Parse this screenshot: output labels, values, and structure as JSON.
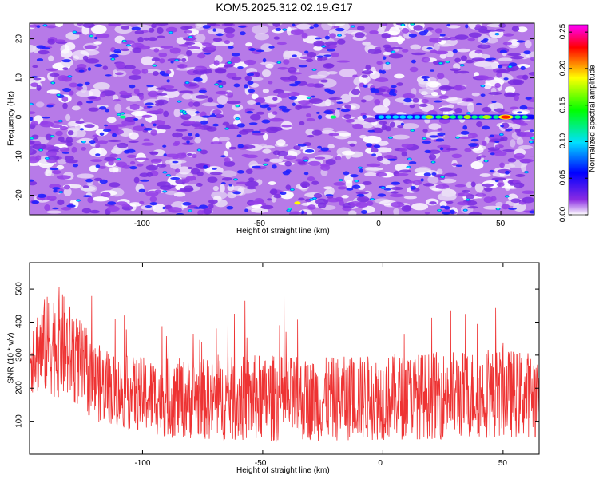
{
  "title": "KOM5.2025.312.02.19.G17",
  "chart_data": [
    {
      "type": "heatmap",
      "title": "KOM5.2025.312.02.19.G17",
      "xlabel": "Height of straight line (km)",
      "ylabel": "Frequency (Hz)",
      "xlim": [
        -147,
        64
      ],
      "ylim": [
        -25,
        24
      ],
      "x_ticks": [
        -100,
        -50,
        0,
        50
      ],
      "y_ticks": [
        -20,
        -10,
        0,
        10,
        20
      ],
      "colorbar": {
        "label": "Normalized spectral amplitude",
        "range": [
          0,
          0.26
        ],
        "ticks": [
          "0.00",
          "0.05",
          "0.10",
          "0.15",
          "0.20",
          "0.25"
        ],
        "colors": [
          "#ffffff",
          "#8a2be2",
          "#0000ff",
          "#00e0ff",
          "#00ff00",
          "#ffff00",
          "#ff0000",
          "#ff00ff"
        ]
      },
      "feature": {
        "description_values": "strong ridge at 0 Hz from about 0 km to 62 km",
        "frequency": 0,
        "x_start": 0,
        "x_end": 62,
        "peak_x": 52,
        "peak_value": 0.26
      }
    },
    {
      "type": "line",
      "xlabel": "Height of straight line (km)",
      "ylabel": "SNR (10 * v/v)",
      "xlim": [
        -147,
        65
      ],
      "ylim": [
        0,
        580
      ],
      "x_ticks": [
        -100,
        -50,
        0,
        50
      ],
      "y_ticks": [
        100,
        200,
        300,
        400,
        500
      ],
      "color": "#ee3333",
      "profile": [
        {
          "x": -147,
          "mean": 300,
          "amp": 120
        },
        {
          "x": -140,
          "mean": 330,
          "amp": 150
        },
        {
          "x": -135,
          "mean": 340,
          "amp": 170
        },
        {
          "x": -128,
          "mean": 290,
          "amp": 140
        },
        {
          "x": -120,
          "mean": 220,
          "amp": 120
        },
        {
          "x": -110,
          "mean": 190,
          "amp": 110
        },
        {
          "x": -90,
          "mean": 170,
          "amp": 120
        },
        {
          "x": -70,
          "mean": 165,
          "amp": 125
        },
        {
          "x": -50,
          "mean": 170,
          "amp": 135
        },
        {
          "x": -30,
          "mean": 165,
          "amp": 125
        },
        {
          "x": -10,
          "mean": 170,
          "amp": 130
        },
        {
          "x": 10,
          "mean": 175,
          "amp": 130
        },
        {
          "x": 30,
          "mean": 180,
          "amp": 135
        },
        {
          "x": 50,
          "mean": 185,
          "amp": 135
        },
        {
          "x": 65,
          "mean": 180,
          "amp": 130
        }
      ]
    }
  ]
}
